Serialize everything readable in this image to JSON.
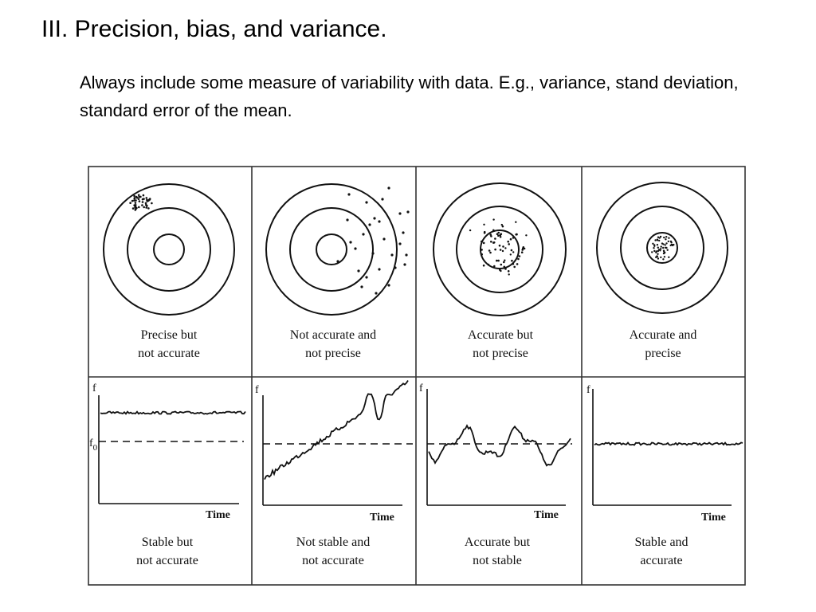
{
  "slide": {
    "title": "III. Precision, bias, and variance.",
    "body": "Always include some measure of variability with data.  E.g., variance, stand deviation, standard error of the mean."
  },
  "figure": {
    "targets": [
      {
        "caption_line1": "Precise but",
        "caption_line2": "not accurate",
        "pattern": "tight cluster off-center"
      },
      {
        "caption_line1": "Not accurate and",
        "caption_line2": "not precise",
        "pattern": "wide scatter off-center"
      },
      {
        "caption_line1": "Accurate but",
        "caption_line2": "not precise",
        "pattern": "wide scatter centered"
      },
      {
        "caption_line1": "Accurate and",
        "caption_line2": "precise",
        "pattern": "tight cluster centered"
      }
    ],
    "timeseries": [
      {
        "caption_line1": "Stable but",
        "caption_line2": "not accurate",
        "y_label": "f",
        "ref_label": "f",
        "ref_sub": "0",
        "x_label": "Time"
      },
      {
        "caption_line1": "Not stable and",
        "caption_line2": "not accurate",
        "y_label": "f",
        "x_label": "Time"
      },
      {
        "caption_line1": "Accurate but",
        "caption_line2": "not stable",
        "y_label": "f",
        "x_label": "Time"
      },
      {
        "caption_line1": "Stable and",
        "caption_line2": "accurate",
        "y_label": "f",
        "x_label": "Time"
      }
    ]
  },
  "colors": {
    "ink": "#111111",
    "frame": "#333333"
  }
}
